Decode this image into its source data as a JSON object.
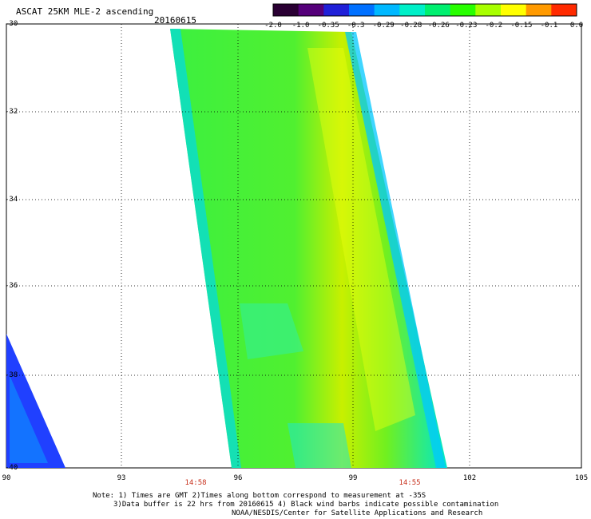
{
  "header": {
    "title": "ASCAT 25KM MLE-2 ascending",
    "date": "20160615"
  },
  "colorbar": {
    "ticks": [
      "-2.0",
      "-1.0",
      "-0.35",
      "-0.3",
      "-0.29",
      "-0.28",
      "-0.26",
      "-0.23",
      "-0.2",
      "-0.15",
      "-0.1",
      "0.0"
    ],
    "colors": [
      "#2a0033",
      "#55007a",
      "#2020d8",
      "#0070ff",
      "#00b8ff",
      "#00f0c8",
      "#00f070",
      "#28ff00",
      "#a8ff00",
      "#ffff00",
      "#ff9a00",
      "#ff2a00"
    ]
  },
  "axes": {
    "y_ticks": [
      "-30",
      "-32",
      "-34",
      "-36",
      "-38",
      "-40"
    ],
    "x_ticks": [
      "90",
      "93",
      "96",
      "99",
      "102",
      "105"
    ]
  },
  "times": [
    "14:58",
    "14:55"
  ],
  "notes": [
    "Note: 1) Times are GMT 2)Times along bottom correspond to measurement at -35S",
    "3)Data buffer is 22 hrs from 20160615 4) Black wind barbs indicate possible contamination",
    "NOAA/NESDIS/Center for Satellite Applications and Research"
  ]
}
